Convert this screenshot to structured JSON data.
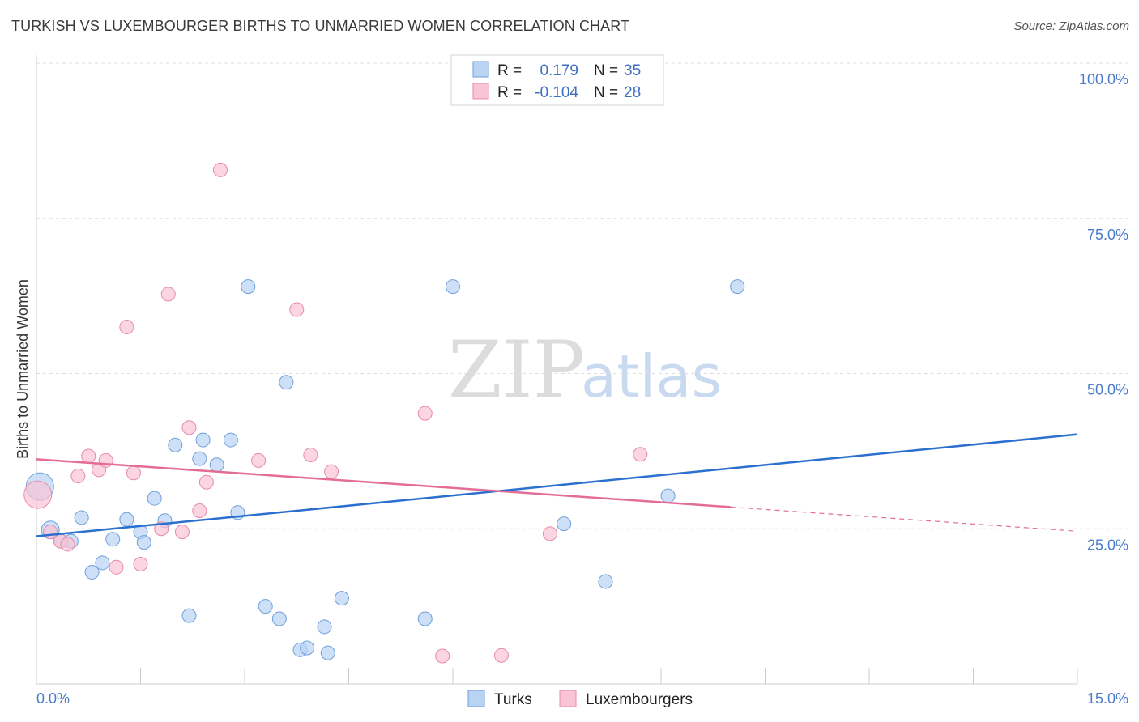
{
  "header": {
    "title": "TURKISH VS LUXEMBOURGER BIRTHS TO UNMARRIED WOMEN CORRELATION CHART",
    "source": "Source: ZipAtlas.com"
  },
  "watermark": {
    "zip": "ZIP",
    "atlas": "atlas"
  },
  "colors": {
    "turks_fill": "#b9d3f3",
    "turks_stroke": "#6f9fda",
    "turks_line": "#2b6fcf",
    "lux_fill": "#f9c5d6",
    "lux_stroke": "#e78aa8",
    "lux_line": "#e46d97",
    "grid": "#dddddd",
    "tick_text": "#4a7cc9"
  },
  "legend": {
    "rows": [
      {
        "r_label": "R =",
        "r_value": "0.179",
        "n_label": "N =",
        "n_value": "35"
      },
      {
        "r_label": "R =",
        "r_value": "-0.104",
        "n_label": "N =",
        "n_value": "28"
      }
    ]
  },
  "chart_data": {
    "type": "scatter",
    "ylabel": "Births to Unmarried Women",
    "xlim": [
      0,
      15
    ],
    "ylim": [
      0,
      100
    ],
    "x_tick_labels": [
      "0.0%",
      "15.0%"
    ],
    "y_tick_labels": [
      "100.0%",
      "75.0%",
      "50.0%",
      "25.0%"
    ],
    "y_ticks": [
      100,
      75,
      50,
      25
    ],
    "series": [
      {
        "name": "Turks",
        "trend": {
          "x": [
            0,
            15
          ],
          "y": [
            23.8,
            40.2
          ]
        },
        "points": [
          {
            "x": 0.05,
            "y": 31.8,
            "s": 3
          },
          {
            "x": 0.2,
            "y": 24.8,
            "s": 2
          },
          {
            "x": 0.35,
            "y": 23.0,
            "s": 1
          },
          {
            "x": 0.5,
            "y": 23.0,
            "s": 1
          },
          {
            "x": 0.65,
            "y": 26.8,
            "s": 1
          },
          {
            "x": 0.8,
            "y": 18.0,
            "s": 1
          },
          {
            "x": 0.95,
            "y": 19.5,
            "s": 1
          },
          {
            "x": 1.1,
            "y": 23.3,
            "s": 1
          },
          {
            "x": 1.3,
            "y": 26.5,
            "s": 1
          },
          {
            "x": 1.5,
            "y": 24.5,
            "s": 1
          },
          {
            "x": 1.55,
            "y": 22.8,
            "s": 1
          },
          {
            "x": 1.7,
            "y": 29.9,
            "s": 1
          },
          {
            "x": 1.85,
            "y": 26.3,
            "s": 1
          },
          {
            "x": 2.0,
            "y": 38.5,
            "s": 1
          },
          {
            "x": 2.2,
            "y": 11.0,
            "s": 1
          },
          {
            "x": 2.35,
            "y": 36.3,
            "s": 1
          },
          {
            "x": 2.4,
            "y": 39.3,
            "s": 1
          },
          {
            "x": 2.6,
            "y": 35.3,
            "s": 1
          },
          {
            "x": 2.8,
            "y": 39.3,
            "s": 1
          },
          {
            "x": 2.9,
            "y": 27.6,
            "s": 1
          },
          {
            "x": 3.05,
            "y": 64.0,
            "s": 1
          },
          {
            "x": 3.3,
            "y": 12.5,
            "s": 1
          },
          {
            "x": 3.5,
            "y": 10.5,
            "s": 1
          },
          {
            "x": 3.6,
            "y": 48.6,
            "s": 1
          },
          {
            "x": 3.8,
            "y": 5.5,
            "s": 1
          },
          {
            "x": 3.9,
            "y": 5.8,
            "s": 1
          },
          {
            "x": 4.15,
            "y": 9.2,
            "s": 1
          },
          {
            "x": 4.2,
            "y": 5.0,
            "s": 1
          },
          {
            "x": 4.4,
            "y": 13.8,
            "s": 1
          },
          {
            "x": 5.6,
            "y": 10.5,
            "s": 1
          },
          {
            "x": 6.0,
            "y": 64.0,
            "s": 1
          },
          {
            "x": 7.6,
            "y": 25.8,
            "s": 1
          },
          {
            "x": 8.2,
            "y": 16.5,
            "s": 1
          },
          {
            "x": 9.1,
            "y": 30.3,
            "s": 1
          },
          {
            "x": 10.1,
            "y": 64.0,
            "s": 1
          }
        ]
      },
      {
        "name": "Luxembourgers",
        "trend": {
          "x": [
            0,
            10.0
          ],
          "y": [
            36.2,
            28.5
          ]
        },
        "trend_dashed": {
          "x": [
            10.0,
            15
          ],
          "y": [
            28.5,
            24.6
          ]
        },
        "points": [
          {
            "x": 0.02,
            "y": 30.5,
            "s": 3
          },
          {
            "x": 0.2,
            "y": 24.5,
            "s": 1
          },
          {
            "x": 0.35,
            "y": 23.0,
            "s": 1
          },
          {
            "x": 0.45,
            "y": 22.5,
            "s": 1
          },
          {
            "x": 0.6,
            "y": 33.5,
            "s": 1
          },
          {
            "x": 0.75,
            "y": 36.7,
            "s": 1
          },
          {
            "x": 0.9,
            "y": 34.5,
            "s": 1
          },
          {
            "x": 1.0,
            "y": 36.0,
            "s": 1
          },
          {
            "x": 1.15,
            "y": 18.8,
            "s": 1
          },
          {
            "x": 1.3,
            "y": 57.5,
            "s": 1
          },
          {
            "x": 1.4,
            "y": 34.0,
            "s": 1
          },
          {
            "x": 1.5,
            "y": 19.3,
            "s": 1
          },
          {
            "x": 1.8,
            "y": 25.0,
            "s": 1
          },
          {
            "x": 1.9,
            "y": 62.8,
            "s": 1
          },
          {
            "x": 2.1,
            "y": 24.5,
            "s": 1
          },
          {
            "x": 2.2,
            "y": 41.3,
            "s": 1
          },
          {
            "x": 2.35,
            "y": 27.9,
            "s": 1
          },
          {
            "x": 2.45,
            "y": 32.5,
            "s": 1
          },
          {
            "x": 2.65,
            "y": 82.8,
            "s": 1
          },
          {
            "x": 3.2,
            "y": 36.0,
            "s": 1
          },
          {
            "x": 3.75,
            "y": 60.3,
            "s": 1
          },
          {
            "x": 3.95,
            "y": 36.9,
            "s": 1
          },
          {
            "x": 4.25,
            "y": 34.2,
            "s": 1
          },
          {
            "x": 5.6,
            "y": 43.6,
            "s": 1
          },
          {
            "x": 5.85,
            "y": 4.5,
            "s": 1
          },
          {
            "x": 6.7,
            "y": 4.6,
            "s": 1
          },
          {
            "x": 7.4,
            "y": 24.2,
            "s": 1
          },
          {
            "x": 8.7,
            "y": 37.0,
            "s": 1
          }
        ]
      }
    ]
  }
}
